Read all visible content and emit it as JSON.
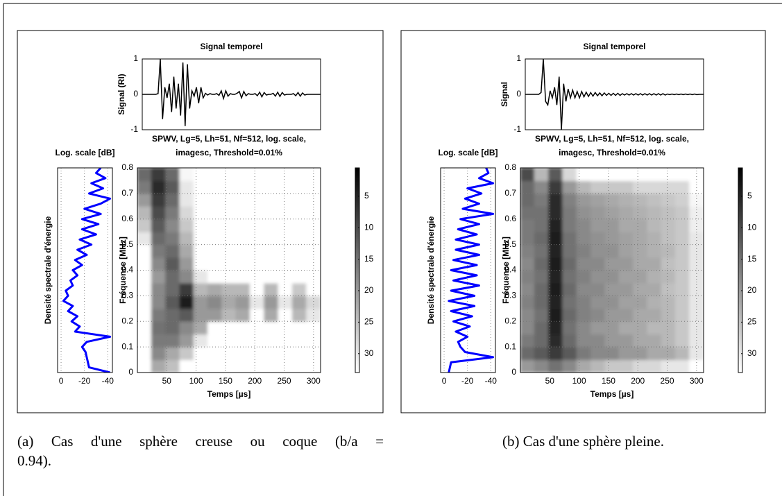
{
  "chart_data": [
    {
      "type": "line",
      "title": "Signal temporel",
      "ylabel": "Signal (RI)",
      "color": "#000000",
      "xlim": [
        0,
        316
      ],
      "ylim": [
        -1,
        1
      ],
      "yticks": [
        -1,
        0,
        1
      ],
      "x": [
        0,
        4,
        8,
        12,
        16,
        20,
        24,
        28,
        32,
        36,
        40,
        44,
        48,
        52,
        56,
        60,
        64,
        68,
        72,
        76,
        80,
        84,
        88,
        92,
        96,
        100,
        104,
        108,
        112,
        116,
        120,
        124,
        128,
        132,
        136,
        140,
        144,
        148,
        152,
        156,
        160,
        164,
        168,
        172,
        176,
        180,
        184,
        188,
        192,
        196,
        200,
        204,
        208,
        212,
        216,
        220,
        224,
        228,
        232,
        236,
        240,
        244,
        248,
        252,
        256,
        260,
        264,
        268,
        272,
        276,
        280,
        284,
        288,
        292,
        296,
        300,
        304,
        308,
        312,
        316
      ],
      "values": [
        0,
        0,
        0,
        0,
        0,
        0,
        0,
        0.02,
        1,
        -0.7,
        0.2,
        -0.1,
        0.3,
        -0.5,
        0.5,
        -0.4,
        0.3,
        -0.6,
        0.9,
        -0.9,
        0.85,
        -0.4,
        0.1,
        -0.05,
        0.2,
        -0.25,
        0.2,
        -0.1,
        0.03,
        -0.02,
        0.02,
        0,
        0,
        0.02,
        -0.03,
        0.1,
        -0.12,
        0.1,
        -0.05,
        0.02,
        0,
        0,
        0.03,
        0.08,
        -0.1,
        0.08,
        -0.04,
        0.02,
        0,
        0,
        0.02,
        -0.04,
        0.06,
        -0.07,
        0.05,
        -0.02,
        0,
        0,
        0.03,
        -0.05,
        0.06,
        -0.06,
        0.05,
        -0.02,
        0,
        0,
        0,
        0.02,
        -0.04,
        0.05,
        -0.05,
        0.04,
        -0.02,
        0,
        0,
        0,
        0,
        0,
        0,
        0
      ]
    },
    {
      "type": "line",
      "orientation": "horizontal",
      "title": "Log. scale [dB]",
      "ylabel": "Densité spectrale d'énergie",
      "color": "#0000ff",
      "xlim": [
        3,
        -44
      ],
      "xticks": [
        0,
        -20,
        -40
      ],
      "ylim": [
        0,
        0.8
      ],
      "grid": true,
      "x": [
        0,
        0.02,
        0.04,
        0.06,
        0.08,
        0.1,
        0.12,
        0.14,
        0.16,
        0.18,
        0.2,
        0.22,
        0.24,
        0.26,
        0.28,
        0.3,
        0.32,
        0.34,
        0.36,
        0.38,
        0.4,
        0.42,
        0.44,
        0.46,
        0.48,
        0.5,
        0.52,
        0.54,
        0.56,
        0.58,
        0.6,
        0.62,
        0.64,
        0.66,
        0.68,
        0.7,
        0.72,
        0.74,
        0.76,
        0.78,
        0.8
      ],
      "values": [
        -42,
        -24,
        -23,
        -22,
        -21,
        -18,
        -22,
        -42,
        -12,
        -16,
        -9,
        -14,
        -6,
        -10,
        -2,
        -6,
        -4,
        -10,
        -8,
        -14,
        -10,
        -18,
        -12,
        -22,
        -14,
        -26,
        -16,
        -30,
        -18,
        -32,
        -18,
        -34,
        -20,
        -34,
        -42,
        -24,
        -36,
        -26,
        -38,
        -30,
        -34
      ]
    },
    {
      "type": "heatmap",
      "title": [
        "SPWV, Lg=5, Lh=51, Nf=512, log. scale,",
        "imagesc, Threshold=0.01%"
      ],
      "xlabel": "Temps [µs]",
      "ylabel": "Fréquence [MHz]",
      "xlim": [
        0,
        312
      ],
      "xticks": [
        50,
        100,
        150,
        200,
        250,
        300
      ],
      "ylim": [
        0,
        0.8
      ],
      "yticks": [
        0,
        0.1,
        0.2,
        0.3,
        0.4,
        0.5,
        0.6,
        0.7,
        0.8
      ],
      "grid": true,
      "colormap": "gray",
      "zlim": [
        0.5,
        33
      ],
      "zticks": [
        5,
        10,
        15,
        20,
        25,
        30
      ],
      "x": [
        12,
        36,
        60,
        84,
        108,
        132,
        156,
        180,
        204,
        228,
        252,
        276,
        300
      ],
      "y": [
        0.025,
        0.075,
        0.125,
        0.175,
        0.225,
        0.275,
        0.325,
        0.375,
        0.425,
        0.475,
        0.525,
        0.575,
        0.625,
        0.675,
        0.725,
        0.775
      ],
      "z": [
        [
          33,
          22,
          25,
          33,
          33,
          33,
          33,
          33,
          33,
          33,
          33,
          33,
          33
        ],
        [
          33,
          18,
          22,
          26,
          33,
          33,
          33,
          33,
          33,
          33,
          33,
          33,
          33
        ],
        [
          33,
          16,
          16,
          20,
          30,
          33,
          33,
          33,
          33,
          33,
          33,
          33,
          33
        ],
        [
          33,
          15,
          14,
          18,
          22,
          33,
          33,
          33,
          33,
          33,
          33,
          33,
          33
        ],
        [
          33,
          16,
          14,
          12,
          20,
          20,
          24,
          22,
          33,
          22,
          33,
          24,
          30
        ],
        [
          33,
          18,
          12,
          4,
          20,
          18,
          22,
          20,
          30,
          20,
          30,
          22,
          28
        ],
        [
          33,
          18,
          14,
          8,
          24,
          22,
          24,
          24,
          33,
          24,
          33,
          26,
          33
        ],
        [
          33,
          20,
          14,
          18,
          30,
          33,
          33,
          33,
          33,
          33,
          33,
          33,
          33
        ],
        [
          33,
          18,
          12,
          20,
          33,
          33,
          33,
          33,
          33,
          33,
          33,
          33,
          33
        ],
        [
          33,
          16,
          14,
          22,
          33,
          33,
          33,
          33,
          33,
          33,
          33,
          33,
          33
        ],
        [
          30,
          14,
          16,
          24,
          33,
          33,
          33,
          33,
          33,
          33,
          33,
          33,
          33
        ],
        [
          26,
          12,
          18,
          26,
          33,
          33,
          33,
          33,
          33,
          33,
          33,
          33,
          33
        ],
        [
          24,
          10,
          16,
          28,
          33,
          33,
          33,
          33,
          33,
          33,
          33,
          33,
          33
        ],
        [
          20,
          8,
          14,
          30,
          33,
          33,
          33,
          33,
          33,
          33,
          33,
          33,
          33
        ],
        [
          16,
          6,
          12,
          30,
          33,
          33,
          33,
          33,
          33,
          33,
          33,
          33,
          33
        ],
        [
          14,
          8,
          14,
          32,
          33,
          33,
          33,
          33,
          33,
          33,
          33,
          33,
          33
        ]
      ]
    },
    {
      "type": "line",
      "title": "Signal temporel",
      "ylabel": "Signal",
      "color": "#000000",
      "xlim": [
        0,
        316
      ],
      "ylim": [
        -1,
        1
      ],
      "yticks": [
        -1,
        0,
        1
      ],
      "x": [
        0,
        4,
        8,
        12,
        16,
        20,
        24,
        28,
        32,
        36,
        40,
        44,
        48,
        52,
        56,
        60,
        64,
        68,
        72,
        76,
        80,
        84,
        88,
        92,
        96,
        100,
        104,
        108,
        112,
        116,
        120,
        124,
        128,
        132,
        136,
        140,
        144,
        148,
        152,
        156,
        160,
        164,
        168,
        172,
        176,
        180,
        184,
        188,
        192,
        196,
        200,
        204,
        208,
        212,
        216,
        220,
        224,
        228,
        232,
        236,
        240,
        244,
        248,
        252,
        256,
        260,
        264,
        268,
        272,
        276,
        280,
        284,
        288,
        292,
        296,
        300,
        304,
        308,
        312,
        316
      ],
      "values": [
        0,
        0,
        0,
        0,
        0,
        0,
        0,
        0.05,
        1,
        -0.2,
        -0.3,
        0.1,
        -0.1,
        0.2,
        -0.3,
        0.5,
        -1,
        0.3,
        -0.2,
        0.15,
        -0.1,
        0.12,
        -0.1,
        0.08,
        -0.1,
        0.08,
        -0.07,
        0.06,
        -0.06,
        0.05,
        -0.05,
        0.05,
        -0.04,
        0.04,
        -0.04,
        0.04,
        -0.03,
        0.03,
        -0.03,
        0.03,
        -0.03,
        0.03,
        -0.03,
        0.02,
        -0.02,
        0.02,
        -0.02,
        0.02,
        -0.02,
        0.02,
        -0.02,
        0.02,
        -0.02,
        0.02,
        -0.02,
        0.02,
        -0.02,
        0.02,
        -0.02,
        0.02,
        -0.02,
        0.02,
        -0.02,
        0.01,
        -0.01,
        0.01,
        -0.01,
        0.01,
        -0.01,
        0.01,
        -0.01,
        0.01,
        -0.01,
        0.01,
        -0.01,
        0.01,
        -0.01,
        0,
        0,
        0
      ]
    },
    {
      "type": "line",
      "orientation": "horizontal",
      "title": "Log. scale [dB]",
      "ylabel": "Densité spectrale d'énergie",
      "color": "#0000ff",
      "xlim": [
        3,
        -44
      ],
      "xticks": [
        0,
        -20,
        -40
      ],
      "ylim": [
        0,
        0.8
      ],
      "grid": true,
      "x": [
        0,
        0.02,
        0.04,
        0.06,
        0.08,
        0.1,
        0.12,
        0.14,
        0.16,
        0.18,
        0.2,
        0.22,
        0.24,
        0.26,
        0.28,
        0.3,
        0.32,
        0.34,
        0.36,
        0.38,
        0.4,
        0.42,
        0.44,
        0.46,
        0.48,
        0.5,
        0.52,
        0.54,
        0.56,
        0.58,
        0.6,
        0.62,
        0.64,
        0.66,
        0.68,
        0.7,
        0.72,
        0.74,
        0.76,
        0.78,
        0.8
      ],
      "values": [
        -4,
        -5,
        -6,
        -42,
        -18,
        -14,
        -12,
        -20,
        -10,
        -22,
        -8,
        -24,
        -6,
        -26,
        -4,
        -26,
        -6,
        -30,
        -8,
        -28,
        -6,
        -28,
        -8,
        -30,
        -10,
        -30,
        -10,
        -28,
        -12,
        -30,
        -14,
        -42,
        -16,
        -30,
        -18,
        -32,
        -20,
        -42,
        -30,
        -38,
        -36
      ]
    },
    {
      "type": "heatmap",
      "title": [
        "SPWV, Lg=5, Lh=51, Nf=512, log. scale,",
        "imagesc, Threshold=0.01%"
      ],
      "xlabel": "Temps [µs]",
      "ylabel": "Fréquence [MHz]",
      "xlim": [
        0,
        312
      ],
      "xticks": [
        50,
        100,
        150,
        200,
        250,
        300
      ],
      "ylim": [
        0,
        0.8
      ],
      "yticks": [
        0,
        0.1,
        0.2,
        0.3,
        0.4,
        0.5,
        0.6,
        0.7,
        0.8
      ],
      "grid": true,
      "colormap": "gray",
      "zlim": [
        0.5,
        33
      ],
      "zticks": [
        5,
        10,
        15,
        20,
        25,
        30
      ],
      "x": [
        12,
        36,
        60,
        84,
        108,
        132,
        156,
        180,
        204,
        228,
        252,
        276,
        300
      ],
      "y": [
        0.025,
        0.075,
        0.125,
        0.175,
        0.225,
        0.275,
        0.325,
        0.375,
        0.425,
        0.475,
        0.525,
        0.575,
        0.625,
        0.675,
        0.725,
        0.775
      ],
      "z": [
        [
          20,
          18,
          15,
          18,
          22,
          24,
          26,
          26,
          28,
          28,
          30,
          30,
          33
        ],
        [
          14,
          12,
          8,
          12,
          16,
          18,
          18,
          20,
          20,
          22,
          22,
          24,
          30
        ],
        [
          16,
          14,
          6,
          14,
          18,
          18,
          20,
          20,
          22,
          22,
          24,
          26,
          30
        ],
        [
          18,
          14,
          5,
          15,
          18,
          20,
          20,
          22,
          22,
          24,
          24,
          26,
          30
        ],
        [
          18,
          15,
          4,
          14,
          17,
          18,
          20,
          20,
          22,
          22,
          24,
          26,
          30
        ],
        [
          17,
          14,
          5,
          15,
          17,
          19,
          19,
          21,
          21,
          23,
          24,
          26,
          30
        ],
        [
          18,
          14,
          4,
          14,
          18,
          18,
          20,
          20,
          22,
          22,
          25,
          26,
          30
        ],
        [
          17,
          15,
          5,
          15,
          17,
          19,
          19,
          21,
          21,
          23,
          24,
          26,
          30
        ],
        [
          18,
          14,
          4,
          14,
          18,
          18,
          20,
          20,
          22,
          22,
          25,
          26,
          30
        ],
        [
          17,
          15,
          5,
          15,
          17,
          19,
          19,
          21,
          22,
          23,
          24,
          26,
          30
        ],
        [
          16,
          14,
          4,
          15,
          18,
          19,
          20,
          21,
          22,
          23,
          25,
          26,
          30
        ],
        [
          16,
          15,
          5,
          16,
          18,
          20,
          20,
          22,
          22,
          24,
          25,
          26,
          31
        ],
        [
          15,
          15,
          6,
          16,
          19,
          20,
          21,
          22,
          23,
          24,
          25,
          26,
          31
        ],
        [
          14,
          16,
          6,
          17,
          20,
          21,
          22,
          23,
          24,
          25,
          26,
          27,
          32
        ],
        [
          14,
          18,
          8,
          20,
          24,
          26,
          26,
          26,
          28,
          28,
          28,
          28,
          33
        ],
        [
          10,
          24,
          12,
          28,
          33,
          33,
          33,
          33,
          33,
          33,
          33,
          33,
          33
        ]
      ]
    }
  ],
  "captions": [
    [
      "(a) Cas d'une sphère creuse ou coque (b/a =",
      "0.94)."
    ],
    "(b) Cas d'une sphère pleine."
  ]
}
